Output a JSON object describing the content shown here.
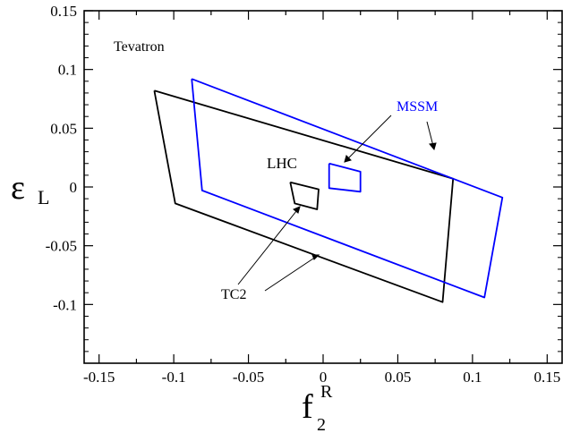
{
  "chart_data": {
    "type": "line",
    "xlim": [
      -0.16,
      0.16
    ],
    "ylim": [
      -0.15,
      0.15
    ],
    "xticks": [
      "-0.15",
      "-0.1",
      "-0.05",
      "0",
      "0.05",
      "0.1",
      "0.15"
    ],
    "yticks": [
      "0.15",
      "0.1",
      "0.05",
      "0",
      "-0.05",
      "-0.1"
    ],
    "xlabel": {
      "main": "f",
      "sup": "R",
      "sub": "2"
    },
    "ylabel": {
      "main": "ε",
      "sub": "L"
    },
    "grid": false,
    "annotations": {
      "tevatron": "Tevatron",
      "lhc": "LHC",
      "mssm": "MSSM",
      "tc2": "TC2"
    },
    "series": [
      {
        "name": "TC2",
        "color": "#000000",
        "contours": [
          [
            [
              -0.113,
              0.082
            ],
            [
              0.087,
              0.007
            ],
            [
              0.08,
              -0.098
            ],
            [
              -0.099,
              -0.014
            ],
            [
              -0.113,
              0.082
            ]
          ],
          [
            [
              -0.022,
              0.004
            ],
            [
              -0.003,
              -0.002
            ],
            [
              -0.004,
              -0.019
            ],
            [
              -0.019,
              -0.014
            ],
            [
              -0.022,
              0.004
            ]
          ]
        ]
      },
      {
        "name": "MSSM",
        "color": "#0000ff",
        "contours": [
          [
            [
              -0.088,
              0.092
            ],
            [
              0.12,
              -0.009
            ],
            [
              0.108,
              -0.094
            ],
            [
              -0.081,
              -0.003
            ],
            [
              -0.088,
              0.092
            ]
          ],
          [
            [
              0.004,
              0.02
            ],
            [
              0.025,
              0.013
            ],
            [
              0.025,
              -0.004
            ],
            [
              0.004,
              -0.001
            ],
            [
              0.004,
              0.02
            ]
          ]
        ]
      }
    ]
  }
}
